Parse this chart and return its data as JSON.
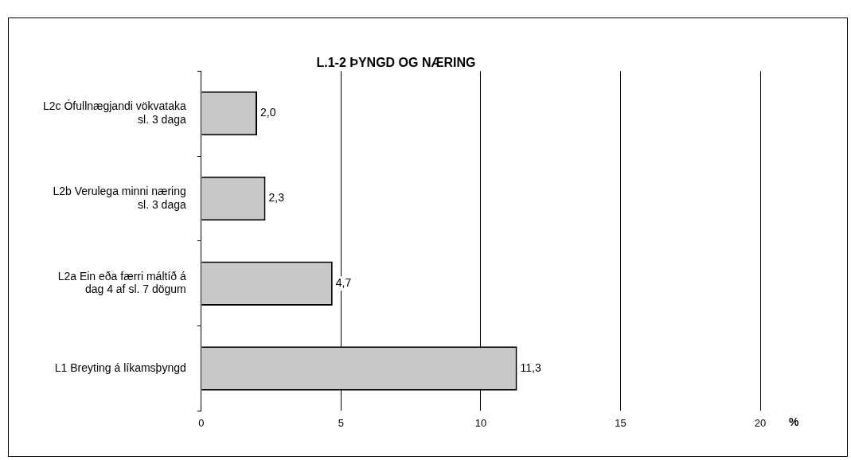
{
  "chart_data": {
    "type": "bar",
    "orientation": "horizontal",
    "title": "L.1-2 ÞYNGD OG NÆRING",
    "xlabel": "%",
    "categories": [
      "L2c Ófullnægjandi vökvataka sl. 3 daga",
      "L2b Verulega minni næring sl. 3 daga",
      "L2a Ein eða færri máltíð á dag 4 af sl. 7 dögum",
      "L1 Breyting á líkamsþyngd"
    ],
    "values": [
      2.0,
      2.3,
      4.7,
      11.3
    ],
    "value_labels": [
      "2,0",
      "2,3",
      "4,7",
      "11,3"
    ],
    "color": "#c8c8c8",
    "xlim": [
      0,
      20
    ],
    "xticks": [
      0,
      5,
      10,
      15,
      20
    ],
    "grid": "x",
    "legend": false
  }
}
